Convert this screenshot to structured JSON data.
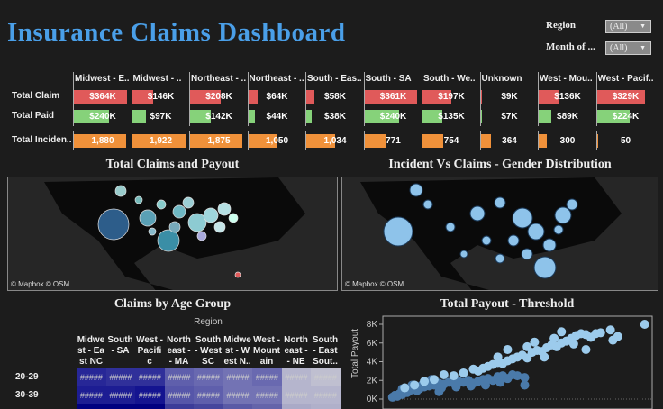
{
  "title": "Insurance Claims Dashboard",
  "filters": [
    {
      "label": "Region",
      "value": "(All)"
    },
    {
      "label": "Month of ...",
      "value": "(All)"
    }
  ],
  "summary": {
    "regions": [
      "Midwest - E..",
      "Midwest - ..",
      "Northeast - ..",
      "Northeast - ..",
      "South - Eas..",
      "South - SA",
      "South - We..",
      "Unknown",
      "West - Mou..",
      "West - Pacif.."
    ],
    "rows": [
      {
        "label": "Total Claim",
        "color": "#e05a5a",
        "values": [
          364,
          146,
          208,
          64,
          58,
          361,
          197,
          9,
          136,
          329
        ],
        "labels": [
          "$364K",
          "$146K",
          "$208K",
          "$64K",
          "$58K",
          "$361K",
          "$197K",
          "$9K",
          "$136K",
          "$329K"
        ]
      },
      {
        "label": "Total Paid",
        "color": "#86d27a",
        "values": [
          240,
          97,
          142,
          44,
          38,
          240,
          135,
          7,
          89,
          224
        ],
        "labels": [
          "$240K",
          "$97K",
          "$142K",
          "$44K",
          "$38K",
          "$240K",
          "$135K",
          "$7K",
          "$89K",
          "$224K"
        ]
      },
      {
        "label": "Total Inciden..",
        "color": "#f0913a",
        "values": [
          1880,
          1922,
          1875,
          1050,
          1034,
          771,
          754,
          364,
          300,
          50
        ],
        "labels": [
          "1,880",
          "1,922",
          "1,875",
          "1,050",
          "1,034",
          "771",
          "754",
          "364",
          "300",
          "50"
        ]
      }
    ]
  },
  "map1": {
    "title": "Total Claims and Payout",
    "credit": "© Mapbox  © OSM"
  },
  "map2": {
    "title": "Incident Vs Claims - Gender Distribution",
    "credit": "© Mapbox  © OSM"
  },
  "heatmap": {
    "title": "Claims by Age Group",
    "column_header": "Region",
    "columns": [
      "Midwe st - Ea st NC",
      "South - SA",
      "West - Pacifi c",
      "North east - - MA",
      "South - West SC",
      "Midwe st - W est N..",
      "West - Mount ain",
      "North east - - NE",
      "South - East Sout.."
    ],
    "rows": [
      {
        "label": "20-29",
        "cells": [
          "#####",
          "#####",
          "#####",
          "#####",
          "#####",
          "#####",
          "#####",
          "#####",
          "#####"
        ],
        "intensity": [
          0.85,
          0.8,
          0.8,
          0.55,
          0.5,
          0.45,
          0.5,
          0.1,
          0.05
        ]
      },
      {
        "label": "30-39",
        "cells": [
          "#####",
          "#####",
          "#####",
          "#####",
          "#####",
          "#####",
          "#####",
          "#####",
          "#####"
        ],
        "intensity": [
          0.9,
          0.9,
          0.95,
          0.6,
          0.55,
          0.45,
          0.45,
          0.1,
          0.1
        ]
      }
    ],
    "colors": {
      "high": "#0a0a8c",
      "low": "#c8c8d4"
    }
  },
  "chart_data": {
    "type": "scatter",
    "title": "Total Payout - Threshold",
    "ylabel": "Total Payout",
    "xlabel": "",
    "yticks": [
      "0K",
      "2K",
      "4K",
      "6K",
      "8K"
    ],
    "ylim": [
      0,
      8500
    ],
    "xlim": [
      0,
      100
    ],
    "colors": [
      "#4a7aaa",
      "#9ccbec"
    ],
    "series": [
      {
        "points": [
          [
            1,
            200
          ],
          [
            2,
            400
          ],
          [
            3,
            300
          ],
          [
            4,
            600
          ],
          [
            5,
            500
          ],
          [
            6,
            800
          ],
          [
            7,
            700
          ],
          [
            8,
            900
          ],
          [
            9,
            1000
          ],
          [
            10,
            1200
          ],
          [
            11,
            900
          ],
          [
            12,
            1100
          ],
          [
            13,
            1500
          ],
          [
            14,
            1300
          ],
          [
            15,
            1600
          ],
          [
            16,
            1400
          ],
          [
            18,
            1500
          ],
          [
            20,
            1700
          ],
          [
            22,
            1600
          ],
          [
            24,
            1800
          ],
          [
            26,
            1700
          ],
          [
            28,
            1900
          ],
          [
            30,
            1800
          ],
          [
            32,
            2000
          ],
          [
            34,
            1700
          ],
          [
            36,
            1900
          ],
          [
            38,
            2100
          ],
          [
            40,
            2200
          ],
          [
            42,
            2000
          ],
          [
            44,
            2400
          ],
          [
            46,
            2500
          ],
          [
            48,
            2200
          ],
          [
            50,
            2600
          ],
          [
            52,
            2500
          ],
          [
            55,
            2300
          ],
          [
            5,
            1100
          ],
          [
            9,
            1500
          ],
          [
            17,
            2100
          ],
          [
            21,
            1200
          ],
          [
            27,
            1300
          ],
          [
            33,
            1400
          ],
          [
            39,
            1500
          ],
          [
            45,
            1800
          ],
          [
            55,
            1500
          ],
          [
            20,
            800
          ]
        ]
      },
      {
        "points": [
          [
            6,
            1200
          ],
          [
            10,
            1500
          ],
          [
            14,
            1900
          ],
          [
            18,
            2100
          ],
          [
            22,
            2600
          ],
          [
            26,
            2500
          ],
          [
            30,
            2800
          ],
          [
            34,
            3200
          ],
          [
            36,
            3000
          ],
          [
            38,
            3300
          ],
          [
            40,
            3500
          ],
          [
            42,
            3700
          ],
          [
            44,
            3900
          ],
          [
            46,
            3800
          ],
          [
            48,
            4100
          ],
          [
            50,
            4300
          ],
          [
            52,
            4500
          ],
          [
            54,
            4700
          ],
          [
            56,
            4400
          ],
          [
            58,
            5000
          ],
          [
            60,
            5200
          ],
          [
            62,
            5100
          ],
          [
            64,
            5500
          ],
          [
            66,
            5800
          ],
          [
            68,
            5600
          ],
          [
            70,
            6000
          ],
          [
            72,
            6200
          ],
          [
            74,
            6500
          ],
          [
            76,
            6800
          ],
          [
            70,
            7200
          ],
          [
            78,
            7000
          ],
          [
            80,
            6900
          ],
          [
            82,
            6600
          ],
          [
            84,
            7000
          ],
          [
            86,
            7100
          ],
          [
            90,
            7400
          ],
          [
            91,
            6300
          ],
          [
            93,
            6700
          ],
          [
            80,
            5300
          ],
          [
            67,
            6500
          ],
          [
            59,
            6100
          ],
          [
            63,
            4500
          ],
          [
            48,
            5300
          ],
          [
            44,
            4500
          ],
          [
            56,
            5600
          ],
          [
            75,
            5900
          ],
          [
            104,
            8000
          ]
        ]
      }
    ]
  }
}
